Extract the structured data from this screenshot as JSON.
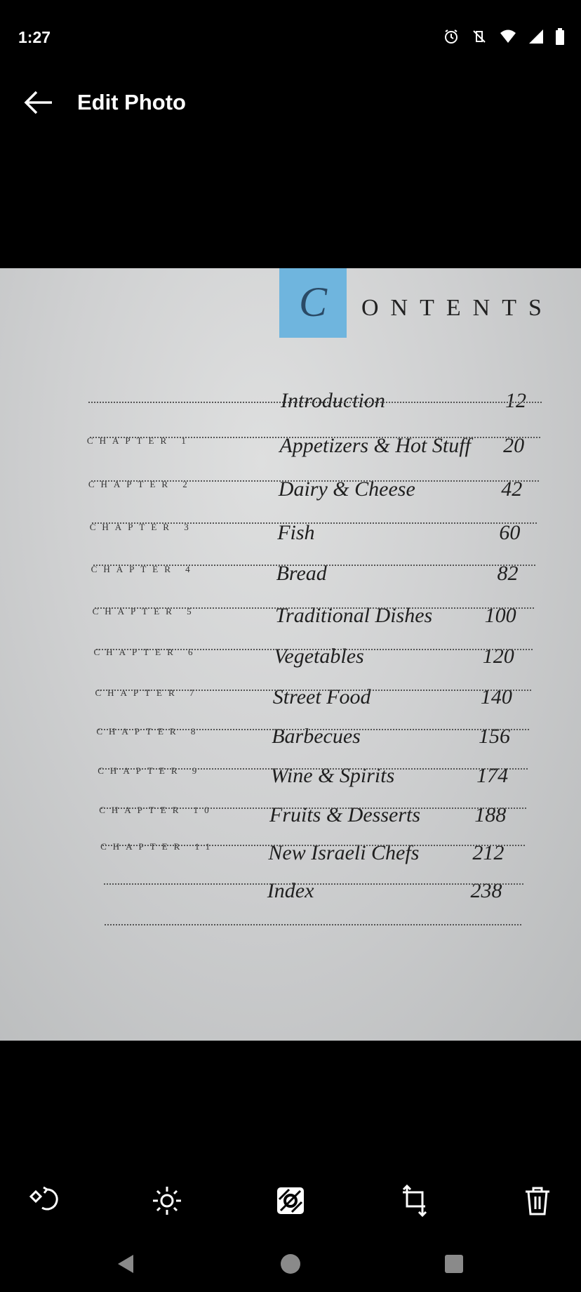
{
  "status_bar": {
    "time": "1:27",
    "icons": [
      "alarm-icon",
      "vibrate-off-icon",
      "wifi-icon",
      "signal-icon",
      "battery-icon"
    ]
  },
  "app_bar": {
    "title": "Edit Photo",
    "back_icon": "arrow-left-icon"
  },
  "photo": {
    "heading_initial": "C",
    "heading_rest": "ONTENTS",
    "accent_color": "#6fb5de",
    "entries": [
      {
        "chapter": "",
        "title": "Introduction",
        "page": "12"
      },
      {
        "chapter": "CHAPTER 1",
        "title": "Appetizers & Hot Stuff",
        "page": "20"
      },
      {
        "chapter": "CHAPTER 2",
        "title": "Dairy & Cheese",
        "page": "42"
      },
      {
        "chapter": "CHAPTER 3",
        "title": "Fish",
        "page": "60"
      },
      {
        "chapter": "CHAPTER 4",
        "title": "Bread",
        "page": "82"
      },
      {
        "chapter": "CHAPTER 5",
        "title": "Traditional Dishes",
        "page": "100"
      },
      {
        "chapter": "CHAPTER 6",
        "title": "Vegetables",
        "page": "120"
      },
      {
        "chapter": "CHAPTER 7",
        "title": "Street Food",
        "page": "140"
      },
      {
        "chapter": "CHAPTER 8",
        "title": "Barbecues",
        "page": "156"
      },
      {
        "chapter": "CHAPTER 9",
        "title": "Wine & Spirits",
        "page": "174"
      },
      {
        "chapter": "CHAPTER 10",
        "title": "Fruits & Desserts",
        "page": "188"
      },
      {
        "chapter": "CHAPTER 11",
        "title": "New Israeli Chefs",
        "page": "212"
      },
      {
        "chapter": "",
        "title": "Index",
        "page": "238"
      }
    ]
  },
  "toolbar": [
    "rotate-icon",
    "brightness-icon",
    "filter-icon",
    "crop-icon",
    "delete-icon"
  ],
  "nav_bar": [
    "back-triangle-icon",
    "home-circle-icon",
    "recents-square-icon"
  ]
}
